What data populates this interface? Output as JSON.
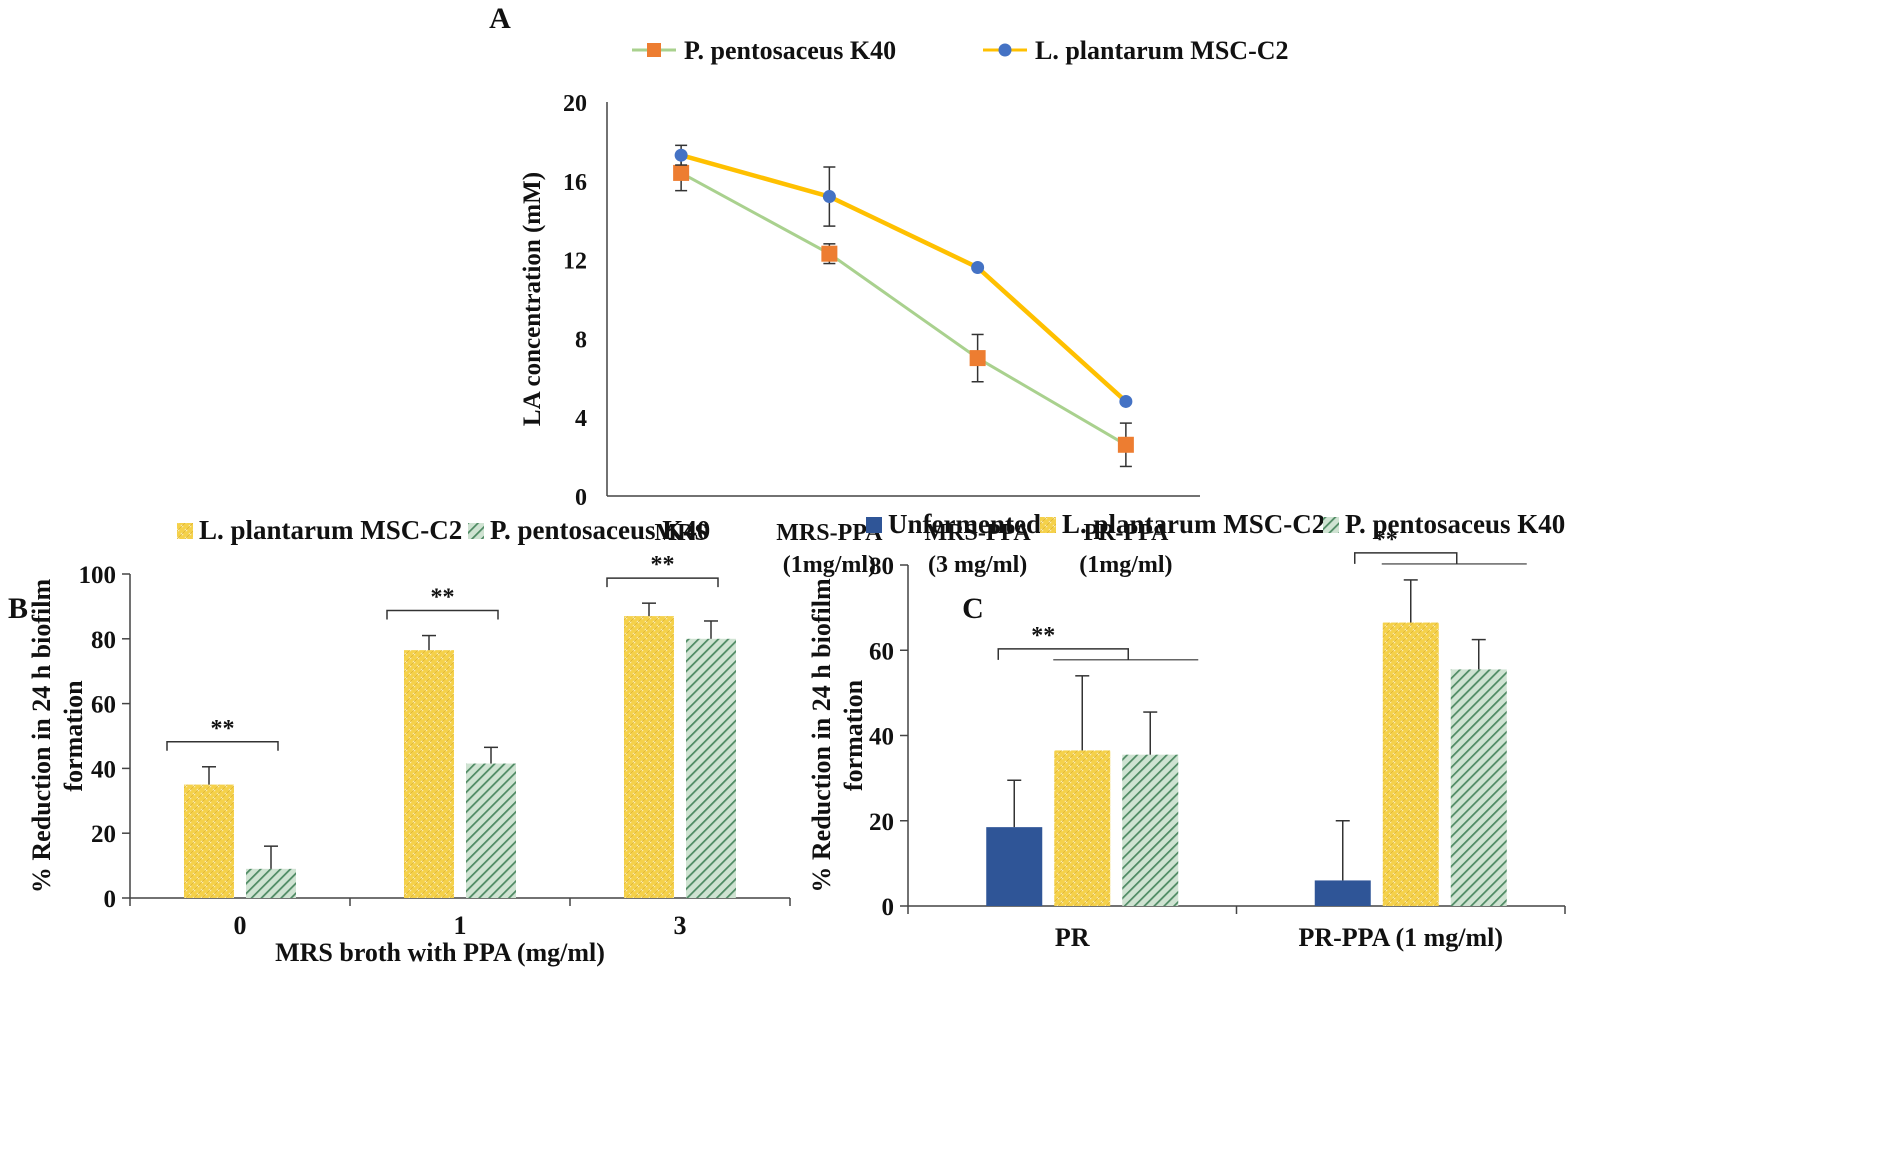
{
  "chart_data": [
    {
      "panel": "A",
      "type": "line",
      "title": "",
      "xlabel": "",
      "ylabel": "LA concentration (mM)",
      "ylim": [
        0,
        20
      ],
      "yticks": [
        0,
        4,
        8,
        12,
        16,
        20
      ],
      "grid": false,
      "legend_position": "top",
      "categories": [
        [
          "MRS"
        ],
        [
          "MRS-PPA",
          "(1mg/ml)"
        ],
        [
          "MRS-PPA",
          "(3 mg/ml)"
        ],
        [
          "PR-PPA",
          "(1mg/ml)"
        ]
      ],
      "series": [
        {
          "name": "P. pentosaceus K40",
          "color": "#a9d18e",
          "marker_color": "#ed7d31",
          "marker": "square",
          "values": [
            16.4,
            12.3,
            7.0,
            2.6
          ],
          "errors": [
            0.9,
            0.5,
            1.2,
            1.1
          ]
        },
        {
          "name": "L. plantarum MSC-C2",
          "color": "#ffc000",
          "marker_color": "#4472c4",
          "marker": "circle",
          "values": [
            17.3,
            15.2,
            11.6,
            4.8
          ],
          "errors": [
            0.5,
            1.5,
            0,
            0
          ]
        }
      ]
    },
    {
      "panel": "B",
      "type": "bar",
      "title": "",
      "xlabel": "MRS broth with PPA (mg/ml)",
      "ylabel": [
        "% Reduction in 24 h biofilm",
        "formation"
      ],
      "ylim": [
        0,
        100
      ],
      "yticks": [
        0,
        20,
        40,
        60,
        80,
        100
      ],
      "grid": false,
      "legend_position": "top",
      "categories": [
        "0",
        "1",
        "3"
      ],
      "series": [
        {
          "name": "L. plantarum MSC-C2",
          "color": "#f5d14a",
          "pattern": "dots",
          "values": [
            35,
            76.5,
            87
          ],
          "errors": [
            5.5,
            4.5,
            4
          ]
        },
        {
          "name": "P. pentosaceus K40",
          "color": "#7fb08a",
          "pattern": "hatch",
          "values": [
            9,
            41.5,
            80
          ],
          "errors": [
            7,
            5,
            5.5
          ]
        }
      ],
      "annotations": [
        {
          "label": "**",
          "group": 0
        },
        {
          "label": "**",
          "group": 1
        },
        {
          "label": "**",
          "group": 2
        }
      ]
    },
    {
      "panel": "C",
      "type": "bar",
      "title": "",
      "xlabel": "",
      "ylabel": [
        "% Reduction in 24 h biofilm",
        "formation"
      ],
      "ylim": [
        0,
        80
      ],
      "yticks": [
        0,
        20,
        40,
        60,
        80
      ],
      "grid": false,
      "legend_position": "top",
      "categories": [
        "PR",
        "PR-PPA (1 mg/ml)"
      ],
      "series": [
        {
          "name": "Unfermented",
          "color": "#2f5597",
          "pattern": "solid",
          "values": [
            18.5,
            6
          ],
          "errors": [
            11,
            14
          ]
        },
        {
          "name": "L. plantarum MSC-C2",
          "color": "#f5d14a",
          "pattern": "dots",
          "values": [
            36.5,
            66.5
          ],
          "errors": [
            17.5,
            10
          ]
        },
        {
          "name": "P. pentosaceus K40",
          "color": "#7fb08a",
          "pattern": "hatch",
          "values": [
            35.5,
            55.5
          ],
          "errors": [
            10,
            7
          ]
        }
      ],
      "annotations": [
        {
          "label": "**",
          "group": 0
        },
        {
          "label": "**",
          "group": 1
        }
      ]
    }
  ],
  "panel_labels": [
    "A",
    "B",
    "C"
  ]
}
